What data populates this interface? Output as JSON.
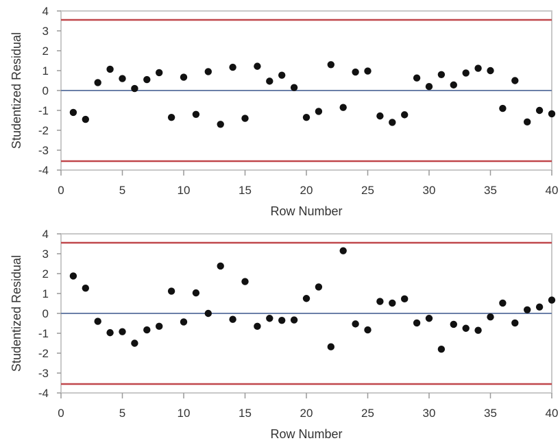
{
  "chart_data": [
    {
      "type": "scatter",
      "xlabel": "Row Number",
      "ylabel": "Studentized Residual",
      "xlim": [
        0,
        40
      ],
      "ylim": [
        -4,
        4
      ],
      "xticks": [
        "0",
        "5",
        "10",
        "15",
        "20",
        "25",
        "30",
        "35",
        "40"
      ],
      "yticks": [
        "4",
        "3",
        "2",
        "1",
        "0",
        "-1",
        "-2",
        "-3",
        "-4"
      ],
      "reference_lines": {
        "center": 0,
        "limits": [
          3.55,
          -3.55
        ]
      },
      "colors": {
        "points": "#111111",
        "center": "#6b7fa8",
        "limits": "#c0474b",
        "frame": "#c8c8c8"
      },
      "x": [
        1,
        2,
        3,
        4,
        5,
        6,
        7,
        8,
        9,
        10,
        11,
        12,
        13,
        14,
        15,
        16,
        17,
        18,
        19,
        20,
        21,
        22,
        23,
        24,
        25,
        26,
        27,
        28,
        29,
        30,
        31,
        32,
        33,
        34,
        35,
        36,
        37,
        38,
        39,
        40
      ],
      "y": [
        -1.1,
        -1.45,
        0.4,
        1.07,
        0.6,
        0.1,
        0.55,
        0.9,
        -1.35,
        0.67,
        -1.2,
        0.95,
        -1.7,
        1.17,
        -1.4,
        1.22,
        0.47,
        0.77,
        0.15,
        -1.35,
        -1.05,
        1.3,
        -0.85,
        0.93,
        0.98,
        -1.28,
        -1.6,
        -1.22,
        0.63,
        0.2,
        0.8,
        0.28,
        0.88,
        1.12,
        1.0,
        -0.9,
        0.5,
        -1.58,
        -1.0,
        -1.17
      ]
    },
    {
      "type": "scatter",
      "xlabel": "Row Number",
      "ylabel": "Studentized Residual",
      "xlim": [
        0,
        40
      ],
      "ylim": [
        -4,
        4
      ],
      "xticks": [
        "0",
        "5",
        "10",
        "15",
        "20",
        "25",
        "30",
        "35",
        "40"
      ],
      "yticks": [
        "4",
        "3",
        "2",
        "1",
        "0",
        "-1",
        "-2",
        "-3",
        "-4"
      ],
      "reference_lines": {
        "center": 0,
        "limits": [
          3.55,
          -3.55
        ]
      },
      "colors": {
        "points": "#111111",
        "center": "#6b7fa8",
        "limits": "#c0474b",
        "frame": "#c8c8c8"
      },
      "x": [
        1,
        2,
        3,
        4,
        5,
        6,
        7,
        8,
        9,
        10,
        11,
        12,
        13,
        14,
        15,
        16,
        17,
        18,
        19,
        20,
        21,
        22,
        23,
        24,
        25,
        26,
        27,
        28,
        29,
        30,
        31,
        32,
        33,
        34,
        35,
        36,
        37,
        38,
        39,
        40
      ],
      "y": [
        1.88,
        1.27,
        -0.4,
        -0.97,
        -0.92,
        -1.5,
        -0.83,
        -0.65,
        1.12,
        -0.43,
        1.03,
        0.0,
        2.38,
        -0.3,
        1.6,
        -0.65,
        -0.25,
        -0.35,
        -0.33,
        0.75,
        1.33,
        -1.68,
        3.15,
        -0.53,
        -0.83,
        0.6,
        0.52,
        0.73,
        -0.48,
        -0.25,
        -1.8,
        -0.55,
        -0.75,
        -0.85,
        -0.18,
        0.52,
        -0.48,
        0.18,
        0.32,
        0.67
      ]
    }
  ]
}
